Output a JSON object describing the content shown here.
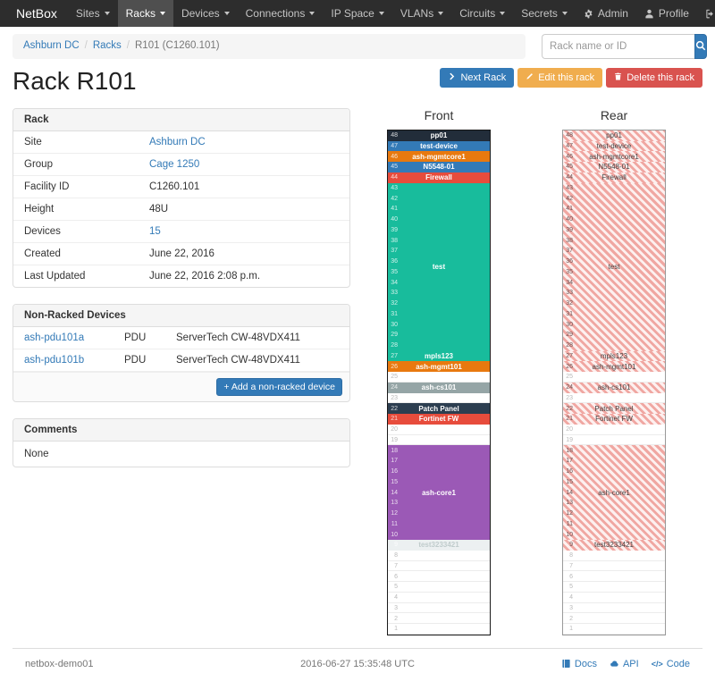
{
  "navbar": {
    "brand": "NetBox",
    "items": [
      {
        "label": "Sites",
        "active": false
      },
      {
        "label": "Racks",
        "active": true
      },
      {
        "label": "Devices",
        "active": false
      },
      {
        "label": "Connections",
        "active": false
      },
      {
        "label": "IP Space",
        "active": false
      },
      {
        "label": "VLANs",
        "active": false
      },
      {
        "label": "Circuits",
        "active": false
      },
      {
        "label": "Secrets",
        "active": false
      }
    ],
    "right_items": [
      {
        "label": "Admin",
        "icon": "gear-icon"
      },
      {
        "label": "Profile",
        "icon": "user-icon"
      },
      {
        "label": "Log out",
        "icon": "logout-icon"
      }
    ]
  },
  "breadcrumb": {
    "items": [
      {
        "label": "Ashburn DC",
        "link": true
      },
      {
        "label": "Racks",
        "link": true
      },
      {
        "label": "R101 (C1260.101)",
        "link": false
      }
    ]
  },
  "search": {
    "placeholder": "Rack name or ID",
    "icon": "search-icon"
  },
  "actions": {
    "next_rack": "Next Rack",
    "next_rack_icon": "chevron-right-icon",
    "edit_rack": "Edit this rack",
    "edit_rack_icon": "pencil-icon",
    "delete_rack": "Delete this rack",
    "delete_rack_icon": "trash-icon"
  },
  "page_title": "Rack R101",
  "rack_panel": {
    "title": "Rack",
    "rows": [
      {
        "label": "Site",
        "value": "Ashburn DC",
        "link": true
      },
      {
        "label": "Group",
        "value": "Cage 1250",
        "link": true
      },
      {
        "label": "Facility ID",
        "value": "C1260.101",
        "link": false
      },
      {
        "label": "Height",
        "value": "48U",
        "link": false
      },
      {
        "label": "Devices",
        "value": "15",
        "link": true
      },
      {
        "label": "Created",
        "value": "June 22, 2016",
        "link": false
      },
      {
        "label": "Last Updated",
        "value": "June 22, 2016 2:08 p.m.",
        "link": false
      }
    ]
  },
  "non_racked_panel": {
    "title": "Non-Racked Devices",
    "devices": [
      {
        "name": "ash-pdu101a",
        "role": "PDU",
        "device_type": "ServerTech CW-48VDX411"
      },
      {
        "name": "ash-pdu101b",
        "role": "PDU",
        "device_type": "ServerTech CW-48VDX411"
      }
    ],
    "add_button_label": "Add a non-racked device",
    "add_button_icon": "plus-icon"
  },
  "comments_panel": {
    "title": "Comments",
    "body": "None"
  },
  "elevation": {
    "front_title": "Front",
    "rear_title": "Rear",
    "total_units": 48,
    "hatch_colors": {
      "light": "#fdf0ef",
      "dark": "#f0a7a2"
    },
    "devices": [
      {
        "name": "pp01",
        "top_unit": 48,
        "height": 1,
        "color": "#222d3a"
      },
      {
        "name": "test-device",
        "top_unit": 47,
        "height": 1,
        "color": "#337ab7"
      },
      {
        "name": "ash-mgmtcore1",
        "top_unit": 46,
        "height": 1,
        "color": "#e8790f"
      },
      {
        "name": "N5548-01",
        "top_unit": 45,
        "height": 1,
        "color": "#337ab7"
      },
      {
        "name": "Firewall",
        "top_unit": 44,
        "height": 1,
        "color": "#e74c3c"
      },
      {
        "name": "test",
        "top_unit": 43,
        "height": 16,
        "color": "#18bc9c"
      },
      {
        "name": "mpls123",
        "top_unit": 27,
        "height": 1,
        "color": "#18bc9c"
      },
      {
        "name": "ash-mgmt101",
        "top_unit": 26,
        "height": 1,
        "color": "#e8790f"
      },
      {
        "name": "ash-cs101",
        "top_unit": 24,
        "height": 1,
        "color": "#95a5a6"
      },
      {
        "name": "Patch Panel",
        "top_unit": 22,
        "height": 1,
        "color": "#2c3e50"
      },
      {
        "name": "Fortinet FW",
        "top_unit": 21,
        "height": 1,
        "color": "#e74c3c"
      },
      {
        "name": "ash-core1",
        "top_unit": 18,
        "height": 9,
        "color": "#9b59b6"
      },
      {
        "name": "test3233421",
        "top_unit": 9,
        "height": 1,
        "color": "#ecf0f1",
        "text_color": "#c0cccc"
      }
    ]
  },
  "footer": {
    "hostname": "netbox-demo01",
    "timestamp": "2016-06-27 15:35:48 UTC",
    "links": [
      {
        "label": "Docs",
        "icon": "book-icon"
      },
      {
        "label": "API",
        "icon": "cloud-icon"
      },
      {
        "label": "Code",
        "icon": "code-icon"
      }
    ]
  },
  "colors": {
    "accent": "#337ab7",
    "warning": "#f0ad4e",
    "danger": "#d9534f",
    "navbar": "#2d2d2d"
  }
}
